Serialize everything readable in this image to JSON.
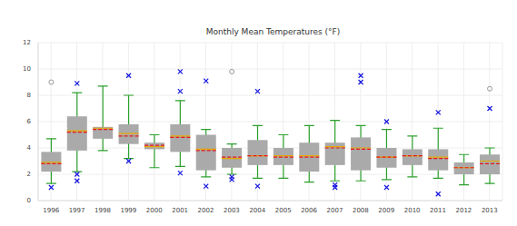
{
  "chart_data": {
    "type": "box",
    "title": "Monthly Mean Temperatures (°F)",
    "categories": [
      "1996",
      "1997",
      "1998",
      "1999",
      "2000",
      "2001",
      "2002",
      "2003",
      "2004",
      "2005",
      "2006",
      "2007",
      "2008",
      "2009",
      "2010",
      "2011",
      "2012",
      "2013"
    ],
    "whisker_low": [
      1.3,
      2.2,
      3.8,
      3.2,
      2.5,
      2.6,
      1.8,
      2.0,
      1.7,
      1.7,
      1.4,
      1.5,
      1.5,
      1.6,
      1.8,
      1.7,
      1.2,
      1.3
    ],
    "q1": [
      2.2,
      3.8,
      4.7,
      4.3,
      3.9,
      3.7,
      2.3,
      2.5,
      2.7,
      2.7,
      2.2,
      2.7,
      2.3,
      2.5,
      2.7,
      2.3,
      2.0,
      2.0
    ],
    "median": [
      2.9,
      5.3,
      5.5,
      5.1,
      4.1,
      4.9,
      3.9,
      3.2,
      3.4,
      3.4,
      3.4,
      4.1,
      4.0,
      3.3,
      3.4,
      3.3,
      2.5,
      3.0
    ],
    "mean": [
      2.8,
      5.2,
      5.4,
      4.9,
      4.2,
      4.8,
      3.8,
      3.3,
      3.4,
      3.3,
      3.3,
      4.0,
      3.9,
      3.3,
      3.4,
      3.2,
      2.5,
      2.8
    ],
    "q3": [
      3.7,
      6.4,
      5.6,
      5.8,
      4.4,
      5.8,
      5.0,
      4.0,
      4.6,
      4.0,
      4.4,
      4.4,
      4.8,
      4.0,
      3.9,
      3.9,
      2.9,
      3.5
    ],
    "whisker_high": [
      4.7,
      8.2,
      8.7,
      8.0,
      5.0,
      7.6,
      5.4,
      4.3,
      5.7,
      5.0,
      5.7,
      6.1,
      5.7,
      5.4,
      4.9,
      5.5,
      3.5,
      4.0
    ],
    "outliers": [
      [
        1.0
      ],
      [
        8.9,
        2.0,
        1.5
      ],
      [],
      [
        9.5,
        3.0
      ],
      [],
      [
        9.8,
        8.3,
        2.1
      ],
      [
        9.1,
        1.1
      ],
      [
        1.8,
        1.6
      ],
      [
        8.3,
        1.1
      ],
      [],
      [],
      [
        1.2,
        1.0
      ],
      [
        9.5,
        9.0
      ],
      [
        6.0,
        1.0
      ],
      [],
      [
        6.7,
        0.5
      ],
      [],
      [
        7.0
      ]
    ],
    "far_outliers": [
      [
        9.0
      ],
      [],
      [],
      [],
      [],
      [],
      [],
      [
        9.8
      ],
      [],
      [],
      [],
      [],
      [],
      [],
      [],
      [],
      [],
      [
        8.5
      ]
    ],
    "color": "#aaaaaa",
    "ylim": [
      0,
      12
    ],
    "yticks": [
      0,
      2,
      4,
      6,
      8,
      10,
      12
    ],
    "grid": true
  }
}
